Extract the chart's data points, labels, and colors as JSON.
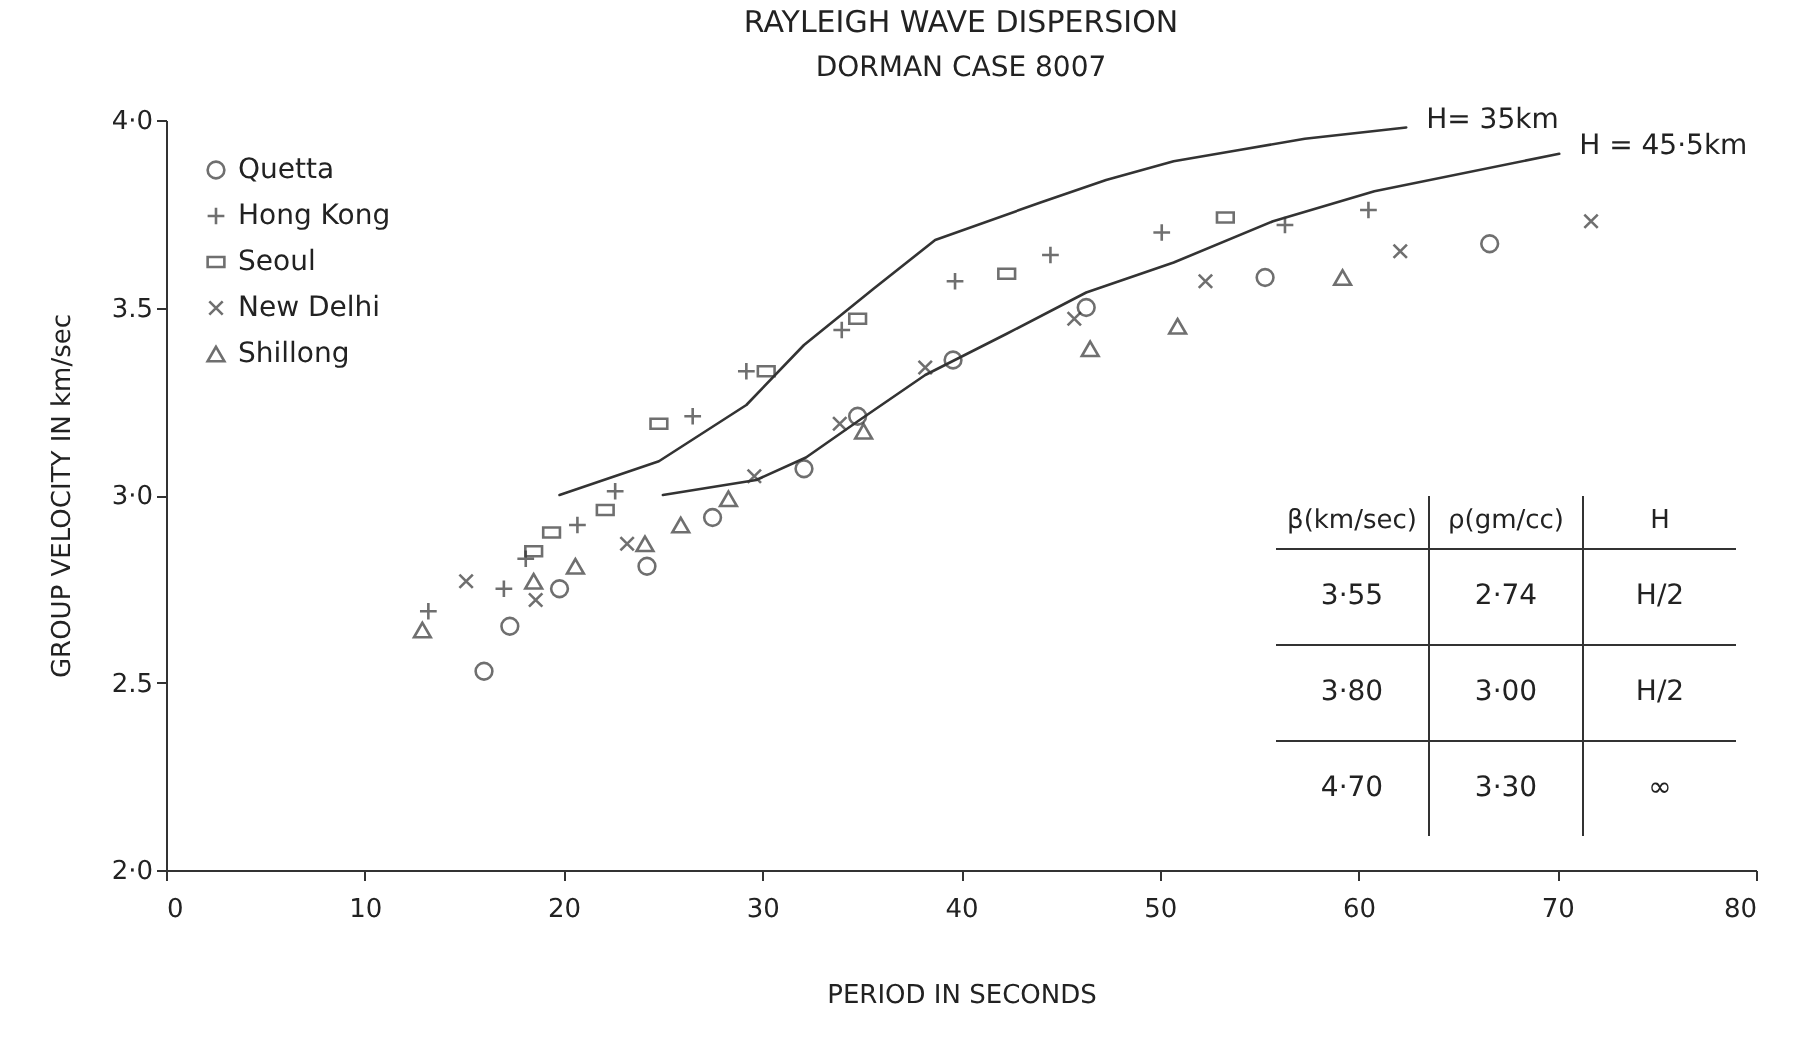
{
  "chart_data": {
    "type": "scatter",
    "title": "RAYLEIGH WAVE DISPERSION",
    "subtitle": "DORMAN CASE 8007",
    "xlabel": "PERIOD IN SECONDS",
    "ylabel": "GROUP VELOCITY IN km/sec",
    "xlim": [
      0,
      80
    ],
    "xticks": [
      0,
      10,
      20,
      30,
      40,
      50,
      60,
      70,
      80
    ],
    "ylim": [
      2,
      4
    ],
    "yticks": [
      {
        "value": 2,
        "label": "2·0"
      },
      {
        "value": 2.5,
        "label": "2.5"
      },
      {
        "value": 3,
        "label": "3·0"
      },
      {
        "value": 3.5,
        "label": "3.5"
      },
      {
        "value": 4,
        "label": "4·0"
      }
    ],
    "grid": false,
    "legend": "top left",
    "series": [
      {
        "name": "Quetta",
        "color": "#333333",
        "marker": "circle",
        "x": [
          16.0,
          17.3,
          19.8,
          24.2,
          27.5,
          32.1,
          34.8,
          39.6,
          46.3,
          55.3,
          66.6
        ],
        "values": [
          2.53,
          2.65,
          2.75,
          2.81,
          2.94,
          3.07,
          3.21,
          3.36,
          3.5,
          3.58,
          3.67
        ]
      },
      {
        "name": "Hong Kong",
        "color": "#333333",
        "marker": "cross",
        "x": [
          13.2,
          17.0,
          18.1,
          20.7,
          22.6,
          26.5,
          29.2,
          34.0,
          39.7,
          44.5,
          50.1,
          56.3,
          60.5
        ],
        "values": [
          2.69,
          2.75,
          2.83,
          2.92,
          3.01,
          3.21,
          3.33,
          3.44,
          3.57,
          3.64,
          3.7,
          3.72,
          3.76
        ]
      },
      {
        "name": "Seoul",
        "color": "#333333",
        "marker": "square",
        "x": [
          18.5,
          19.4,
          22.1,
          24.8,
          30.2,
          34.8,
          42.3,
          53.3
        ],
        "values": [
          2.85,
          2.9,
          2.96,
          3.19,
          3.33,
          3.47,
          3.59,
          3.74
        ]
      },
      {
        "name": "New Delhi",
        "color": "#333333",
        "marker": "x",
        "x": [
          15.1,
          18.6,
          23.2,
          29.6,
          33.9,
          38.2,
          45.7,
          52.3,
          62.1,
          71.7
        ],
        "values": [
          2.77,
          2.72,
          2.87,
          3.05,
          3.19,
          3.34,
          3.47,
          3.57,
          3.65,
          3.73
        ]
      },
      {
        "name": "Shillong",
        "color": "#333333",
        "marker": "triangle",
        "x": [
          12.9,
          18.5,
          20.6,
          24.1,
          25.9,
          28.3,
          35.1,
          46.5,
          50.9,
          59.2
        ],
        "values": [
          2.64,
          2.77,
          2.81,
          2.87,
          2.92,
          2.99,
          3.17,
          3.39,
          3.45,
          3.58
        ]
      },
      {
        "name": "H= 35km",
        "type": "line",
        "color": "#333333",
        "x": [
          19.8,
          24.8,
          29.2,
          32.1,
          35.6,
          38.7,
          44.0,
          47.3,
          50.7,
          54.0,
          57.3,
          62.4
        ],
        "values": [
          3.0,
          3.09,
          3.24,
          3.4,
          3.55,
          3.68,
          3.78,
          3.84,
          3.89,
          3.92,
          3.95,
          3.98
        ]
      },
      {
        "name": "H = 45·5km",
        "type": "line",
        "color": "#333333",
        "x": [
          25.0,
          29.7,
          32.2,
          34.9,
          38.2,
          42.3,
          46.3,
          50.7,
          55.7,
          60.8,
          70.1
        ],
        "values": [
          3.0,
          3.04,
          3.1,
          3.2,
          3.32,
          3.43,
          3.54,
          3.62,
          3.73,
          3.81,
          3.91
        ]
      }
    ],
    "annotations": [
      "β(km/sec)",
      "ρ(gm/cc)",
      "H",
      "3·55",
      "2·74",
      "H/2",
      "3·80",
      "3·00",
      "H/2",
      "4·70",
      "3·30",
      "∞"
    ]
  }
}
